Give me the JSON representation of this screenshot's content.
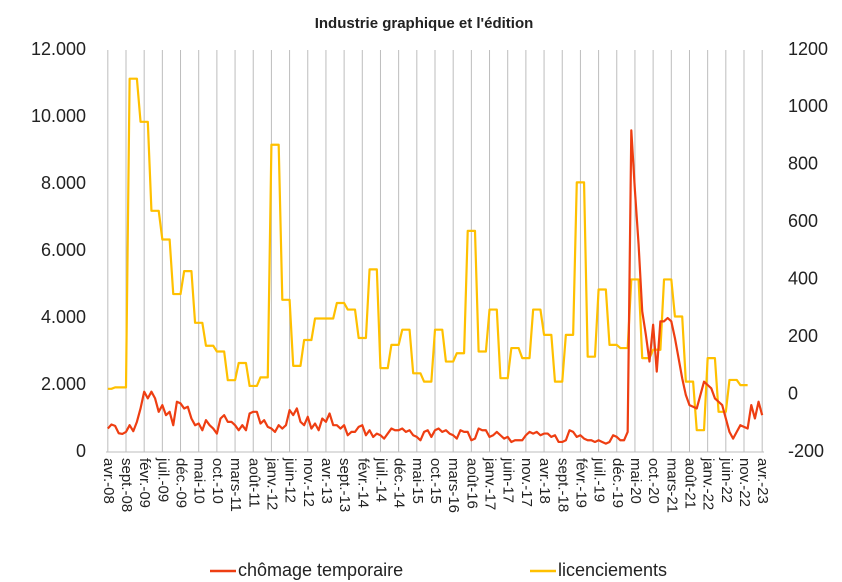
{
  "chart_data": {
    "type": "line",
    "title": "Industrie graphique et l'édition",
    "categories": [
      "avr.-08",
      null,
      null,
      null,
      null,
      "sept.-08",
      null,
      null,
      null,
      null,
      "févr.-09",
      null,
      null,
      null,
      null,
      "juil.-09",
      null,
      null,
      null,
      null,
      "déc.-09",
      null,
      null,
      null,
      null,
      "mai-10",
      null,
      null,
      null,
      null,
      "oct.-10",
      null,
      null,
      null,
      null,
      "mars-11",
      null,
      null,
      null,
      null,
      "août-11",
      null,
      null,
      null,
      null,
      "janv.-12",
      null,
      null,
      null,
      null,
      "juin-12",
      null,
      null,
      null,
      null,
      "nov.-12",
      null,
      null,
      null,
      null,
      "avr.-13",
      null,
      null,
      null,
      null,
      "sept.-13",
      null,
      null,
      null,
      null,
      "févr.-14",
      null,
      null,
      null,
      null,
      "juil.-14",
      null,
      null,
      null,
      null,
      "déc.-14",
      null,
      null,
      null,
      null,
      "mai-15",
      null,
      null,
      null,
      null,
      "oct.-15",
      null,
      null,
      null,
      null,
      "mars-16",
      null,
      null,
      null,
      null,
      "août-16",
      null,
      null,
      null,
      null,
      "janv.-17",
      null,
      null,
      null,
      null,
      "juin-17",
      null,
      null,
      null,
      null,
      "nov.-17",
      null,
      null,
      null,
      null,
      "avr.-18",
      null,
      null,
      null,
      null,
      "sept.-18",
      null,
      null,
      null,
      null,
      "févr.-19",
      null,
      null,
      null,
      null,
      "juil.-19",
      null,
      null,
      null,
      null,
      "déc.-19",
      null,
      null,
      null,
      null,
      "mai-20",
      null,
      null,
      null,
      null,
      "oct.-20",
      null,
      null,
      null,
      null,
      "mars-21",
      null,
      null,
      null,
      null,
      "août-21",
      null,
      null,
      null,
      null,
      "janv.-22",
      null,
      null,
      null,
      null,
      "juin-22",
      null,
      null,
      null,
      null,
      "nov.-22",
      null,
      null,
      null,
      null,
      "avr.-23"
    ],
    "series": [
      {
        "name": "chômage temporaire",
        "color": "#ee3e12",
        "values": [
          700,
          820,
          780,
          560,
          540,
          600,
          800,
          620,
          900,
          1300,
          1800,
          1600,
          1800,
          1600,
          1200,
          1400,
          1100,
          1200,
          800,
          1500,
          1450,
          1300,
          1350,
          1000,
          800,
          850,
          650,
          950,
          800,
          700,
          550,
          1000,
          1100,
          900,
          900,
          800,
          650,
          800,
          650,
          1150,
          1200,
          1200,
          850,
          950,
          750,
          700,
          600,
          800,
          700,
          800,
          1250,
          1100,
          1300,
          900,
          800,
          1050,
          700,
          850,
          650,
          1000,
          900,
          1150,
          800,
          800,
          700,
          800,
          500,
          600,
          600,
          750,
          800,
          500,
          650,
          450,
          550,
          500,
          400,
          550,
          700,
          650,
          650,
          700,
          600,
          650,
          500,
          450,
          350,
          600,
          650,
          450,
          650,
          700,
          600,
          650,
          550,
          500,
          400,
          650,
          600,
          600,
          350,
          400,
          700,
          650,
          650,
          450,
          500,
          600,
          500,
          400,
          450,
          300,
          350,
          350,
          350,
          500,
          600,
          550,
          600,
          500,
          550,
          550,
          450,
          500,
          300,
          300,
          350,
          650,
          600,
          450,
          500,
          400,
          350,
          350,
          300,
          350,
          300,
          250,
          300,
          500,
          450,
          350,
          350,
          600,
          9600,
          7800,
          6200,
          4200,
          3500,
          2700,
          3800,
          2400,
          3900,
          3900,
          4000,
          3900,
          3400,
          2800,
          2200,
          1700,
          1400,
          1350,
          1300,
          1700,
          2100,
          2000,
          1900,
          1600,
          1500,
          1400,
          1000,
          600,
          400,
          600,
          800,
          750,
          700,
          1400,
          1000,
          1500,
          1100
        ]
      },
      {
        "name": "licenciements",
        "color": "#ffc000",
        "axis": "y2",
        "values": [
          20,
          20,
          25,
          25,
          25,
          25,
          1100,
          1100,
          1100,
          950,
          950,
          950,
          640,
          640,
          640,
          540,
          540,
          540,
          350,
          350,
          350,
          430,
          430,
          430,
          250,
          250,
          250,
          170,
          170,
          170,
          150,
          150,
          150,
          50,
          50,
          50,
          110,
          110,
          110,
          30,
          30,
          30,
          60,
          60,
          60,
          870,
          870,
          870,
          330,
          330,
          330,
          100,
          100,
          100,
          190,
          190,
          190,
          265,
          265,
          265,
          265,
          265,
          265,
          319,
          319,
          319,
          296,
          296,
          296,
          197,
          197,
          197,
          436,
          436,
          436,
          92,
          92,
          92,
          173,
          173,
          173,
          226,
          226,
          226,
          74,
          74,
          74,
          45,
          45,
          45,
          226,
          226,
          226,
          115,
          115,
          115,
          144,
          144,
          144,
          570,
          570,
          570,
          150,
          150,
          150,
          296,
          296,
          296,
          57,
          57,
          57,
          162,
          162,
          162,
          127,
          127,
          127,
          296,
          296,
          296,
          208,
          208,
          208,
          45,
          45,
          45,
          208,
          208,
          208,
          739,
          739,
          739,
          132,
          132,
          132,
          366,
          366,
          366,
          173,
          173,
          173,
          162,
          162,
          162,
          401,
          401,
          401,
          127,
          127,
          127,
          156,
          156,
          156,
          401,
          401,
          401,
          272,
          272,
          272,
          45,
          45,
          45,
          -124,
          -124,
          -124,
          127,
          127,
          127,
          -60,
          -60,
          -60,
          51,
          51,
          51,
          33,
          33,
          33,
          null,
          null,
          null,
          null
        ]
      }
    ],
    "ylim": [
      0,
      12000
    ],
    "yticks": [
      0,
      {
        "value": 2000,
        "label": "2.000"
      },
      {
        "value": 4000,
        "label": "4.000"
      },
      {
        "value": 6000,
        "label": "6.000"
      },
      {
        "value": 8000,
        "label": "8.000"
      },
      {
        "value": 10000,
        "label": "10.000"
      },
      {
        "value": 12000,
        "label": "12.000"
      }
    ],
    "y2lim": [
      -200,
      1200
    ],
    "y2ticks": [
      -200,
      0,
      200,
      400,
      600,
      800,
      1000,
      1200
    ],
    "x_grid": true,
    "legend": "bottom"
  }
}
